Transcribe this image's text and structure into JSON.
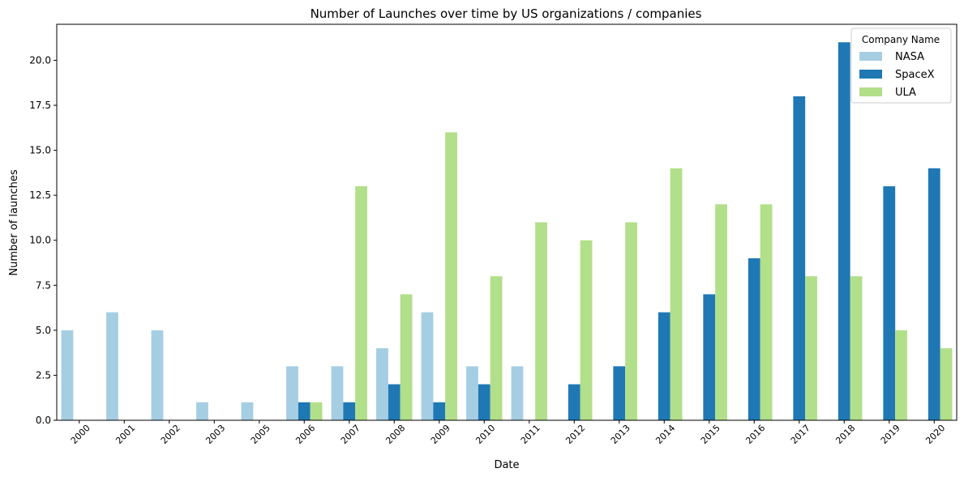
{
  "chart_data": {
    "type": "bar",
    "title": "Number of Launches over time by US organizations / companies",
    "xlabel": "Date",
    "ylabel": "Number of launches",
    "categories": [
      "2000",
      "2001",
      "2002",
      "2003",
      "2005",
      "2006",
      "2007",
      "2008",
      "2009",
      "2010",
      "2011",
      "2012",
      "2013",
      "2014",
      "2015",
      "2016",
      "2017",
      "2018",
      "2019",
      "2020"
    ],
    "ylim": [
      0,
      22
    ],
    "yticks": [
      0.0,
      2.5,
      5.0,
      7.5,
      10.0,
      12.5,
      15.0,
      17.5,
      20.0
    ],
    "ytick_labels": [
      "0.0",
      "2.5",
      "5.0",
      "7.5",
      "10.0",
      "12.5",
      "15.0",
      "17.5",
      "20.0"
    ],
    "grid": false,
    "legend": {
      "title": "Company Name",
      "placement": "top-right"
    },
    "series": [
      {
        "name": "NASA",
        "color": "#a6cee3",
        "values": [
          5,
          6,
          5,
          1,
          1,
          3,
          3,
          4,
          6,
          3,
          3,
          0,
          0,
          0,
          0,
          0,
          0,
          0,
          0,
          0
        ]
      },
      {
        "name": "SpaceX",
        "color": "#1f78b4",
        "values": [
          0,
          0,
          0,
          0,
          0,
          1,
          1,
          2,
          1,
          2,
          0,
          2,
          3,
          6,
          7,
          9,
          18,
          21,
          13,
          14
        ]
      },
      {
        "name": "ULA",
        "color": "#b2df8a",
        "values": [
          0,
          0,
          0,
          0,
          0,
          1,
          13,
          7,
          16,
          8,
          11,
          10,
          11,
          14,
          12,
          12,
          8,
          8,
          5,
          4
        ]
      }
    ]
  }
}
